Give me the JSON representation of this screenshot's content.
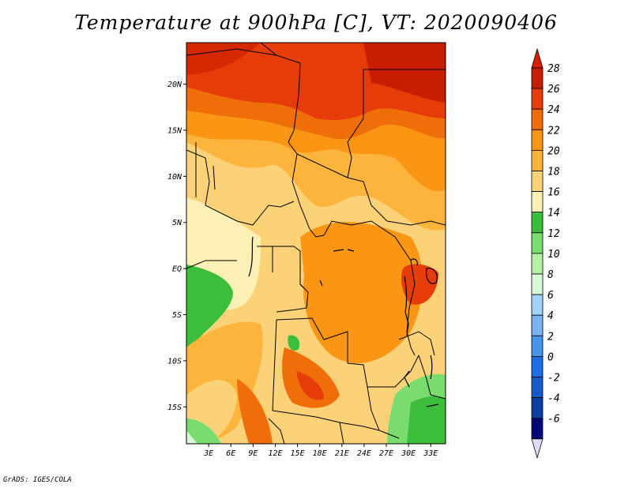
{
  "title": "Temperature at 900hPa [C], VT: 2020090406",
  "credit": "GrADS: IGES/COLA",
  "map": {
    "lat_labels": [
      "20N",
      "15N",
      "10N",
      "5N",
      "EQ",
      "5S",
      "10S",
      "15S"
    ],
    "lat_values": [
      20,
      15,
      10,
      5,
      0,
      -5,
      -10,
      -15
    ],
    "lon_labels": [
      "3E",
      "6E",
      "9E",
      "12E",
      "15E",
      "18E",
      "21E",
      "24E",
      "27E",
      "30E",
      "33E"
    ],
    "lon_values": [
      3,
      6,
      9,
      12,
      15,
      18,
      21,
      24,
      27,
      30,
      33
    ],
    "lon_range": [
      0,
      35
    ],
    "lat_range": [
      -19,
      24.5
    ]
  },
  "colorbar": {
    "labels": [
      "28",
      "26",
      "24",
      "22",
      "20",
      "18",
      "16",
      "14",
      "12",
      "10",
      "8",
      "6",
      "4",
      "2",
      "0",
      "-2",
      "-4",
      "-6"
    ],
    "colors": [
      "#c81e00",
      "#e63c0a",
      "#f06e0a",
      "#fa9614",
      "#fcb43c",
      "#fcd278",
      "#fcf0b4",
      "#3cbe3c",
      "#78dc6e",
      "#b4f0a0",
      "#d8f8d8",
      "#a0d2fa",
      "#78b4f0",
      "#4696ea",
      "#1e6ee6",
      "#145ac8",
      "#0a40a0",
      "#000878"
    ],
    "top_arrow_color": "#dc1e00",
    "bottom_arrow_color": "#dcdcf8"
  }
}
